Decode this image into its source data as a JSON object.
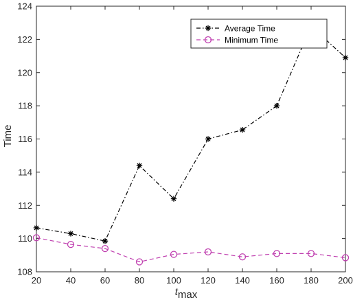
{
  "chart_data": {
    "type": "line",
    "xlabel_main": "t",
    "xlabel_sub": "max",
    "ylabel": "Time",
    "xlim": [
      20,
      200
    ],
    "ylim": [
      108,
      124
    ],
    "xticks": [
      20,
      40,
      60,
      80,
      100,
      120,
      140,
      160,
      180,
      200
    ],
    "yticks": [
      108,
      110,
      112,
      114,
      116,
      118,
      120,
      122,
      124
    ],
    "grid": false,
    "legend_position": "top-right",
    "x": [
      20,
      40,
      60,
      80,
      100,
      120,
      140,
      160,
      180,
      200
    ],
    "series": [
      {
        "name": "Average Time",
        "values": [
          110.65,
          110.3,
          109.85,
          114.4,
          112.4,
          116.0,
          116.55,
          118.0,
          122.8,
          120.9
        ],
        "color": "#000000",
        "marker": "asterisk",
        "line_style": "dash-dot"
      },
      {
        "name": "Minimum Time",
        "values": [
          110.05,
          109.65,
          109.4,
          108.6,
          109.05,
          109.2,
          108.9,
          109.1,
          109.1,
          108.85
        ],
        "color": "#c040b0",
        "marker": "circle",
        "line_style": "dashed"
      }
    ]
  }
}
